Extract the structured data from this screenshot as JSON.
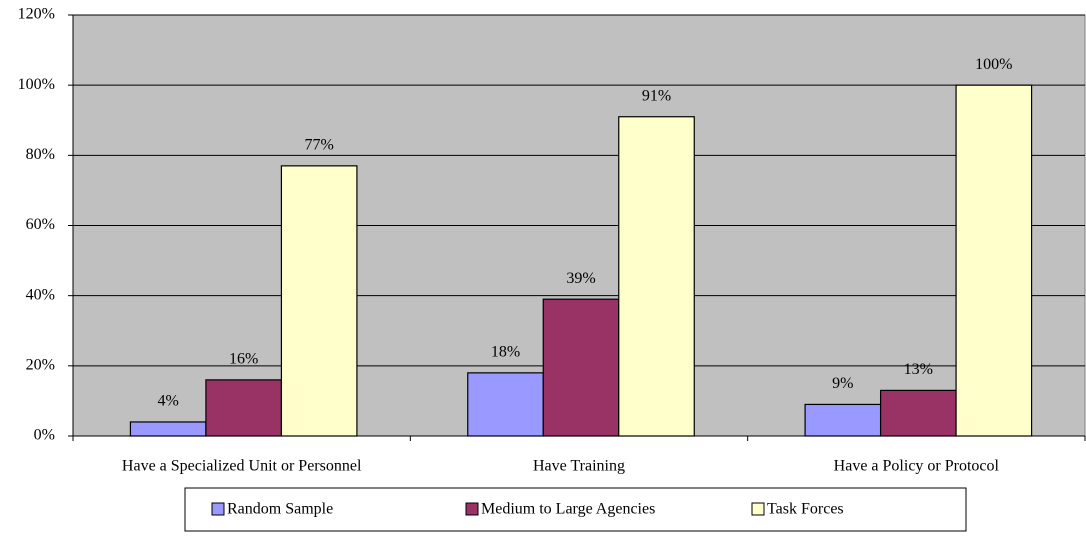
{
  "chart_data": {
    "type": "bar",
    "categories": [
      "Have a Specialized Unit or Personnel",
      "Have Training",
      "Have a Policy or Protocol"
    ],
    "series": [
      {
        "name": "Random Sample",
        "color": "#9999ff",
        "values": [
          4,
          18,
          9
        ],
        "value_labels": [
          "4%",
          "18%",
          "9%"
        ]
      },
      {
        "name": "Medium to Large Agencies",
        "color": "#993366",
        "values": [
          16,
          39,
          13
        ],
        "value_labels": [
          "16%",
          "39%",
          "13%"
        ]
      },
      {
        "name": "Task Forces",
        "color": "#ffffcc",
        "values": [
          77,
          91,
          100
        ],
        "value_labels": [
          "77%",
          "91%",
          "100%"
        ]
      }
    ],
    "ylim": [
      0,
      120
    ],
    "yticks": [
      {
        "value": 0,
        "label": "0%"
      },
      {
        "value": 20,
        "label": "20%"
      },
      {
        "value": 40,
        "label": "40%"
      },
      {
        "value": 60,
        "label": "60%"
      },
      {
        "value": 80,
        "label": "80%"
      },
      {
        "value": 100,
        "label": "100%"
      },
      {
        "value": 120,
        "label": "120%"
      }
    ],
    "grid": true,
    "legend": "bottom",
    "background": "#c0c0c0"
  }
}
